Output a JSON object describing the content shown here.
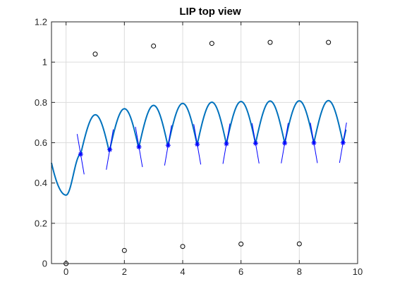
{
  "chart_data": {
    "type": "line",
    "title": "LIP top view",
    "xlabel": "",
    "ylabel": "",
    "xlim": [
      -0.5,
      10
    ],
    "ylim": [
      0,
      1.2
    ],
    "x_ticks": [
      0,
      2,
      4,
      6,
      8,
      10
    ],
    "y_ticks": [
      0,
      0.2,
      0.4,
      0.6,
      0.8,
      1,
      1.2
    ],
    "x_tick_labels": [
      "0",
      "2",
      "4",
      "6",
      "8",
      "10"
    ],
    "y_tick_labels": [
      "0",
      "0.2",
      "0.4",
      "0.6",
      "0.8",
      "1",
      "1.2"
    ],
    "grid": true,
    "colors": {
      "trajectory": "#0072bd",
      "star": "#0000ff",
      "cross_line": "#0000ff",
      "foot": "#000000",
      "grid": "#dcdcdc",
      "axis": "#262626"
    },
    "trajectory": {
      "baseline_start": 0.34,
      "baseline_end": 0.6,
      "amplitude_start": 0.0,
      "amplitude_end": 0.205,
      "start_value": 0.5,
      "start_x": -0.5,
      "end_x": 9.6
    },
    "midpoints": {
      "x": [
        0.5,
        1.5,
        2.5,
        3.5,
        4.5,
        5.5,
        6.5,
        7.5,
        8.5,
        9.5
      ],
      "y": [
        0.543,
        0.566,
        0.579,
        0.587,
        0.592,
        0.595,
        0.597,
        0.598,
        0.599,
        0.6
      ]
    },
    "footholds": {
      "x": [
        0,
        1,
        2,
        3,
        4,
        5,
        6,
        7,
        8,
        9
      ],
      "y": [
        0.0,
        1.04,
        0.065,
        1.08,
        0.085,
        1.093,
        0.097,
        1.098,
        0.098,
        1.098
      ]
    },
    "cross_lines": {
      "half_dx": 0.12,
      "half_dy": 0.1
    }
  }
}
